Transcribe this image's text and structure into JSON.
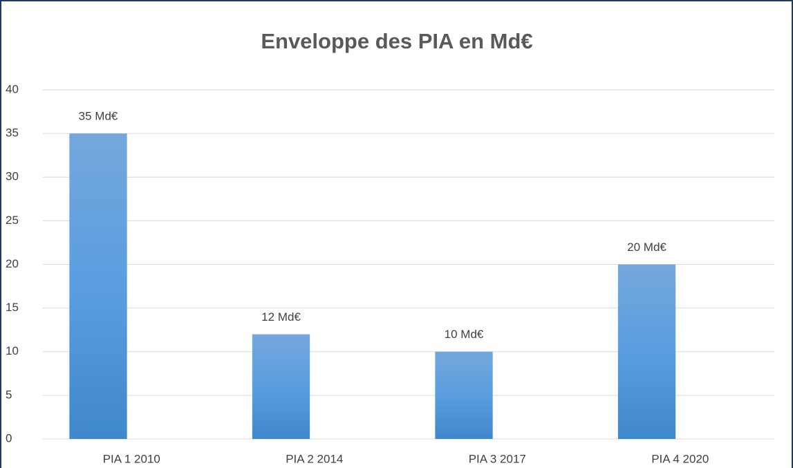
{
  "chart_data": {
    "type": "bar",
    "title": "Enveloppe des PIA en Md€",
    "categories": [
      "PIA 1 2010",
      "PIA 2 2014",
      "PIA 3 2017",
      "PIA 4 2020"
    ],
    "values": [
      35,
      12,
      10,
      20
    ],
    "value_labels": [
      "35 Md€",
      "12 Md€",
      "10 Md€",
      "20 Md€"
    ],
    "color": "#5b9bd5",
    "ylim": [
      0,
      40
    ],
    "yticks": [
      0,
      5,
      10,
      15,
      20,
      25,
      30,
      35,
      40
    ],
    "grid": true
  }
}
